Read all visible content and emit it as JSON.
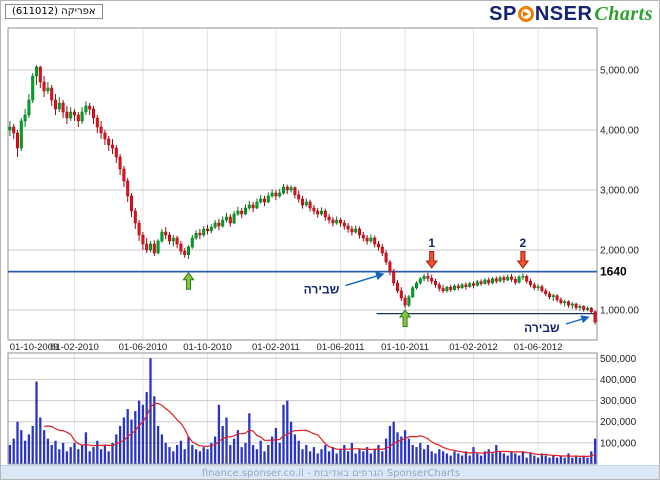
{
  "header": {
    "ticker_label": "אפריקה (611012)",
    "logo": {
      "part1": "SP",
      "part2": "NSER",
      "part3": "Charts"
    }
  },
  "footer": {
    "credit": "finance.sponser.co.il - הגרפים באדיבות SponserCharts"
  },
  "colors": {
    "up": "#00a02c",
    "up_stroke": "#067818",
    "down": "#e0101e",
    "down_stroke": "#a00812",
    "volume_bar": "#2a35c8",
    "volume_ma": "#e02020",
    "grid": "#cccccc",
    "vgrid": "#e4e4e4",
    "frame": "#909090",
    "level_line": "#2a5caa",
    "support_line": "#16336e",
    "annotation_blue": "#1565c0",
    "up_arrow_fill": "#86c440",
    "up_arrow_stroke": "#2e7d1e",
    "down_arrow_fill": "#f4532c",
    "down_arrow_stroke": "#9e1c0a",
    "label_color": "#222222",
    "number_color": "#14246e"
  },
  "chart_data": {
    "type": "candlestick",
    "title": "אפריקה (611012)",
    "legend_position": "none",
    "grid": true,
    "x_labels": [
      "01-10-2009",
      "01-02-2010",
      "01-06-2010",
      "01-10-2010",
      "01-02-2011",
      "01-06-2011",
      "01-10-2011",
      "01-02-2012",
      "01-06-2012"
    ],
    "x_label_weeks": [
      0,
      17,
      35,
      52,
      70,
      87,
      104,
      122,
      139
    ],
    "price_axis": {
      "range": [
        500,
        5700
      ],
      "ticks": [
        {
          "label": "5,000.00",
          "value": 5000
        },
        {
          "label": "4,000.00",
          "value": 4000
        },
        {
          "label": "3,000.00",
          "value": 3000
        },
        {
          "label": "2,000.00",
          "value": 2000
        },
        {
          "label": "1,000.00",
          "value": 1000
        }
      ],
      "key_level": {
        "label": "1640",
        "value": 1640
      }
    },
    "volume_axis": {
      "range": [
        0,
        525000
      ],
      "ticks": [
        {
          "label": "500,000",
          "value": 500000
        },
        {
          "label": "400,000",
          "value": 400000
        },
        {
          "label": "300,000",
          "value": 300000
        },
        {
          "label": "200,000",
          "value": 200000
        },
        {
          "label": "100,000",
          "value": 100000
        }
      ]
    },
    "support_lines": [
      {
        "value": 1640,
        "from_week": 0,
        "to_week": 155,
        "kind": "level"
      },
      {
        "value": 940,
        "from_week": 97,
        "to_week": 155,
        "kind": "support"
      }
    ],
    "candles": [
      [
        4000,
        4150,
        3900,
        4050
      ],
      [
        4050,
        4100,
        3850,
        3950
      ],
      [
        3950,
        4000,
        3550,
        3700
      ],
      [
        3700,
        4200,
        3650,
        4150
      ],
      [
        4150,
        4350,
        4050,
        4250
      ],
      [
        4250,
        4600,
        4200,
        4500
      ],
      [
        4500,
        4950,
        4450,
        4900
      ],
      [
        4900,
        5080,
        4750,
        5050
      ],
      [
        5050,
        5070,
        4700,
        4800
      ],
      [
        4800,
        4900,
        4550,
        4650
      ],
      [
        4650,
        4800,
        4600,
        4700
      ],
      [
        4700,
        4750,
        4400,
        4500
      ],
      [
        4500,
        4600,
        4250,
        4350
      ],
      [
        4350,
        4550,
        4300,
        4450
      ],
      [
        4450,
        4500,
        4200,
        4300
      ],
      [
        4300,
        4400,
        4100,
        4200
      ],
      [
        4200,
        4380,
        4150,
        4300
      ],
      [
        4300,
        4350,
        4150,
        4250
      ],
      [
        4250,
        4300,
        4050,
        4150
      ],
      [
        4150,
        4380,
        4100,
        4300
      ],
      [
        4300,
        4480,
        4250,
        4400
      ],
      [
        4400,
        4450,
        4250,
        4350
      ],
      [
        4350,
        4400,
        4100,
        4200
      ],
      [
        4200,
        4250,
        3950,
        4050
      ],
      [
        4050,
        4150,
        3850,
        3950
      ],
      [
        3950,
        4000,
        3750,
        3850
      ],
      [
        3850,
        3900,
        3650,
        3750
      ],
      [
        3750,
        3850,
        3600,
        3700
      ],
      [
        3700,
        3750,
        3450,
        3550
      ],
      [
        3550,
        3600,
        3250,
        3350
      ],
      [
        3350,
        3400,
        3050,
        3150
      ],
      [
        3150,
        3200,
        2800,
        2900
      ],
      [
        2900,
        2950,
        2550,
        2650
      ],
      [
        2650,
        2700,
        2350,
        2450
      ],
      [
        2450,
        2500,
        2150,
        2250
      ],
      [
        2250,
        2300,
        2000,
        2100
      ],
      [
        2100,
        2200,
        1950,
        2000
      ],
      [
        2000,
        2150,
        1960,
        2100
      ],
      [
        2100,
        2160,
        1900,
        1950
      ],
      [
        1950,
        2180,
        1930,
        2150
      ],
      [
        2150,
        2350,
        2120,
        2300
      ],
      [
        2300,
        2380,
        2180,
        2250
      ],
      [
        2250,
        2300,
        2090,
        2150
      ],
      [
        2150,
        2250,
        2060,
        2200
      ],
      [
        2200,
        2240,
        2030,
        2100
      ],
      [
        2100,
        2150,
        1920,
        1980
      ],
      [
        1980,
        2030,
        1870,
        1920
      ],
      [
        1920,
        2080,
        1850,
        2050
      ],
      [
        2050,
        2250,
        2020,
        2200
      ],
      [
        2200,
        2330,
        2170,
        2280
      ],
      [
        2280,
        2350,
        2180,
        2250
      ],
      [
        2250,
        2400,
        2220,
        2350
      ],
      [
        2350,
        2420,
        2260,
        2320
      ],
      [
        2320,
        2430,
        2280,
        2380
      ],
      [
        2380,
        2500,
        2350,
        2450
      ],
      [
        2450,
        2520,
        2330,
        2400
      ],
      [
        2400,
        2560,
        2370,
        2500
      ],
      [
        2500,
        2620,
        2460,
        2550
      ],
      [
        2550,
        2600,
        2390,
        2450
      ],
      [
        2450,
        2650,
        2430,
        2600
      ],
      [
        2600,
        2720,
        2570,
        2650
      ],
      [
        2650,
        2700,
        2530,
        2600
      ],
      [
        2600,
        2760,
        2580,
        2700
      ],
      [
        2700,
        2820,
        2670,
        2750
      ],
      [
        2750,
        2800,
        2630,
        2700
      ],
      [
        2700,
        2860,
        2680,
        2800
      ],
      [
        2800,
        2920,
        2770,
        2850
      ],
      [
        2850,
        2900,
        2730,
        2800
      ],
      [
        2800,
        2960,
        2780,
        2900
      ],
      [
        2900,
        3010,
        2870,
        2950
      ],
      [
        2950,
        3000,
        2830,
        2900
      ],
      [
        2900,
        3020,
        2870,
        2950
      ],
      [
        2950,
        3100,
        2920,
        3050
      ],
      [
        3050,
        3090,
        2930,
        3000
      ],
      [
        3000,
        3080,
        2960,
        3040
      ],
      [
        3040,
        3060,
        2860,
        2920
      ],
      [
        2920,
        2990,
        2790,
        2850
      ],
      [
        2850,
        2900,
        2690,
        2750
      ],
      [
        2750,
        2860,
        2720,
        2800
      ],
      [
        2800,
        2840,
        2640,
        2700
      ],
      [
        2700,
        2750,
        2590,
        2650
      ],
      [
        2650,
        2700,
        2540,
        2600
      ],
      [
        2600,
        2710,
        2570,
        2650
      ],
      [
        2650,
        2690,
        2490,
        2550
      ],
      [
        2550,
        2600,
        2440,
        2500
      ],
      [
        2500,
        2550,
        2390,
        2450
      ],
      [
        2450,
        2560,
        2420,
        2500
      ],
      [
        2500,
        2540,
        2390,
        2450
      ],
      [
        2450,
        2500,
        2340,
        2400
      ],
      [
        2400,
        2450,
        2290,
        2350
      ],
      [
        2350,
        2400,
        2240,
        2300
      ],
      [
        2300,
        2410,
        2270,
        2350
      ],
      [
        2350,
        2390,
        2190,
        2250
      ],
      [
        2250,
        2300,
        2140,
        2200
      ],
      [
        2200,
        2250,
        2090,
        2150
      ],
      [
        2150,
        2260,
        2120,
        2200
      ],
      [
        2200,
        2240,
        2040,
        2100
      ],
      [
        2100,
        2150,
        1990,
        2050
      ],
      [
        2050,
        2100,
        1900,
        1950
      ],
      [
        1950,
        2000,
        1750,
        1800
      ],
      [
        1800,
        1830,
        1580,
        1650
      ],
      [
        1650,
        1680,
        1400,
        1450
      ],
      [
        1450,
        1500,
        1280,
        1320
      ],
      [
        1320,
        1380,
        1150,
        1200
      ],
      [
        1200,
        1250,
        1030,
        1080
      ],
      [
        1080,
        1250,
        1050,
        1220
      ],
      [
        1220,
        1400,
        1200,
        1370
      ],
      [
        1370,
        1480,
        1340,
        1450
      ],
      [
        1450,
        1550,
        1420,
        1520
      ],
      [
        1520,
        1600,
        1480,
        1560
      ],
      [
        1560,
        1620,
        1470,
        1530
      ],
      [
        1530,
        1590,
        1430,
        1480
      ],
      [
        1480,
        1520,
        1370,
        1420
      ],
      [
        1420,
        1460,
        1310,
        1360
      ],
      [
        1360,
        1420,
        1280,
        1320
      ],
      [
        1320,
        1400,
        1290,
        1380
      ],
      [
        1380,
        1420,
        1300,
        1340
      ],
      [
        1340,
        1430,
        1320,
        1400
      ],
      [
        1400,
        1440,
        1330,
        1370
      ],
      [
        1370,
        1450,
        1350,
        1420
      ],
      [
        1420,
        1460,
        1340,
        1390
      ],
      [
        1390,
        1470,
        1370,
        1440
      ],
      [
        1440,
        1480,
        1360,
        1410
      ],
      [
        1410,
        1500,
        1390,
        1470
      ],
      [
        1470,
        1510,
        1400,
        1440
      ],
      [
        1440,
        1530,
        1420,
        1500
      ],
      [
        1500,
        1540,
        1410,
        1450
      ],
      [
        1450,
        1550,
        1430,
        1520
      ],
      [
        1520,
        1560,
        1440,
        1480
      ],
      [
        1480,
        1570,
        1460,
        1540
      ],
      [
        1540,
        1580,
        1450,
        1500
      ],
      [
        1500,
        1590,
        1480,
        1550
      ],
      [
        1550,
        1600,
        1470,
        1510
      ],
      [
        1510,
        1560,
        1420,
        1460
      ],
      [
        1460,
        1580,
        1440,
        1550
      ],
      [
        1550,
        1610,
        1500,
        1560
      ],
      [
        1560,
        1590,
        1440,
        1480
      ],
      [
        1480,
        1520,
        1380,
        1420
      ],
      [
        1420,
        1460,
        1330,
        1370
      ],
      [
        1370,
        1430,
        1320,
        1390
      ],
      [
        1390,
        1420,
        1290,
        1320
      ],
      [
        1320,
        1360,
        1230,
        1270
      ],
      [
        1270,
        1310,
        1180,
        1220
      ],
      [
        1220,
        1270,
        1150,
        1240
      ],
      [
        1240,
        1260,
        1130,
        1170
      ],
      [
        1170,
        1210,
        1090,
        1120
      ],
      [
        1120,
        1170,
        1060,
        1140
      ],
      [
        1140,
        1160,
        1040,
        1080
      ],
      [
        1080,
        1130,
        1020,
        1100
      ],
      [
        1100,
        1120,
        1000,
        1040
      ],
      [
        1040,
        1090,
        990,
        1060
      ],
      [
        1060,
        1080,
        970,
        1010
      ],
      [
        1010,
        1060,
        980,
        1030
      ],
      [
        1030,
        1050,
        940,
        970
      ],
      [
        970,
        990,
        760,
        800
      ]
    ],
    "volumes": [
      90000,
      120000,
      200000,
      160000,
      110000,
      140000,
      180000,
      390000,
      220000,
      160000,
      120000,
      90000,
      110000,
      70000,
      100000,
      60000,
      80000,
      100000,
      70000,
      90000,
      150000,
      60000,
      80000,
      110000,
      70000,
      90000,
      60000,
      100000,
      140000,
      180000,
      220000,
      260000,
      210000,
      250000,
      300000,
      280000,
      340000,
      500000,
      320000,
      180000,
      140000,
      100000,
      80000,
      60000,
      90000,
      110000,
      70000,
      130000,
      90000,
      70000,
      60000,
      80000,
      70000,
      100000,
      130000,
      280000,
      180000,
      220000,
      90000,
      120000,
      160000,
      80000,
      100000,
      240000,
      90000,
      70000,
      110000,
      60000,
      90000,
      130000,
      170000,
      100000,
      280000,
      300000,
      200000,
      140000,
      110000,
      70000,
      90000,
      60000,
      80000,
      50000,
      70000,
      90000,
      60000,
      80000,
      50000,
      70000,
      90000,
      60000,
      100000,
      50000,
      70000,
      60000,
      80000,
      50000,
      70000,
      90000,
      60000,
      120000,
      180000,
      200000,
      150000,
      130000,
      160000,
      120000,
      90000,
      80000,
      100000,
      70000,
      90000,
      60000,
      50000,
      70000,
      60000,
      50000,
      40000,
      60000,
      50000,
      40000,
      60000,
      40000,
      80000,
      50000,
      40000,
      60000,
      70000,
      50000,
      90000,
      60000,
      50000,
      40000,
      60000,
      50000,
      40000,
      60000,
      30000,
      50000,
      40000,
      30000,
      50000,
      40000,
      30000,
      40000,
      30000,
      40000,
      30000,
      50000,
      30000,
      40000,
      30000,
      40000,
      30000,
      60000,
      120000
    ],
    "volume_ma_period": 10,
    "annotations": {
      "up_arrows": [
        {
          "week": 47,
          "price": 1620
        },
        {
          "week": 104,
          "price": 1000
        }
      ],
      "down_arrows": [
        {
          "week": 111,
          "price": 1700,
          "label": "1"
        },
        {
          "week": 135,
          "price": 1700,
          "label": "2"
        }
      ],
      "break_labels": [
        {
          "text": "שבירה",
          "week": 82,
          "price": 1340,
          "tip_week": 99,
          "tip_price": 1600
        },
        {
          "text": "שבירה",
          "week": 140,
          "price": 700,
          "tip_week": 153,
          "tip_price": 880
        }
      ]
    }
  }
}
